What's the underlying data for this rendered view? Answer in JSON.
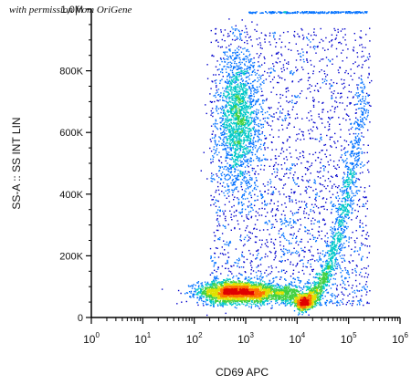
{
  "credit": "with permission from OriGene",
  "chart_data": {
    "type": "scatter",
    "subtype": "flow-cytometry-density-dot-plot",
    "xlabel": "CD69 APC",
    "ylabel": "SS-A :: SS INT LIN",
    "x_scale": "log",
    "xlim": [
      1,
      1000000
    ],
    "ylim": [
      0,
      1000000
    ],
    "x_ticks": [
      {
        "value": 1,
        "base": "10",
        "exp": "0"
      },
      {
        "value": 10,
        "base": "10",
        "exp": "1"
      },
      {
        "value": 100,
        "base": "10",
        "exp": "2"
      },
      {
        "value": 1000,
        "base": "10",
        "exp": "3"
      },
      {
        "value": 10000,
        "base": "10",
        "exp": "4"
      },
      {
        "value": 100000,
        "base": "10",
        "exp": "5"
      },
      {
        "value": 1000000,
        "base": "10",
        "exp": "6"
      }
    ],
    "y_ticks": [
      {
        "value": 0,
        "label": "0"
      },
      {
        "value": 200000,
        "label": "200K"
      },
      {
        "value": 400000,
        "label": "400K"
      },
      {
        "value": 600000,
        "label": "600K"
      },
      {
        "value": 800000,
        "label": "800K"
      },
      {
        "value": 1000000,
        "label": "1,0M"
      }
    ],
    "populations": [
      {
        "name": "",
        "center_x": 600,
        "center_y": 85000,
        "spread_x_decades": 0.35,
        "spread_y": 18000,
        "density": "high"
      },
      {
        "name": "",
        "center_x": 700,
        "center_y": 640000,
        "spread_x_decades": 0.2,
        "spread_y": 110000,
        "density": "medium"
      },
      {
        "name": "",
        "center_x": 25000,
        "center_y": 120000,
        "spread_x_decades": 0.3,
        "spread_y": 90000,
        "density": "high"
      }
    ],
    "density_colors": [
      "#0000cc",
      "#0070ff",
      "#00c8c8",
      "#40d040",
      "#e0e000",
      "#ff7000",
      "#e00000"
    ],
    "grid": false,
    "legend": false
  }
}
